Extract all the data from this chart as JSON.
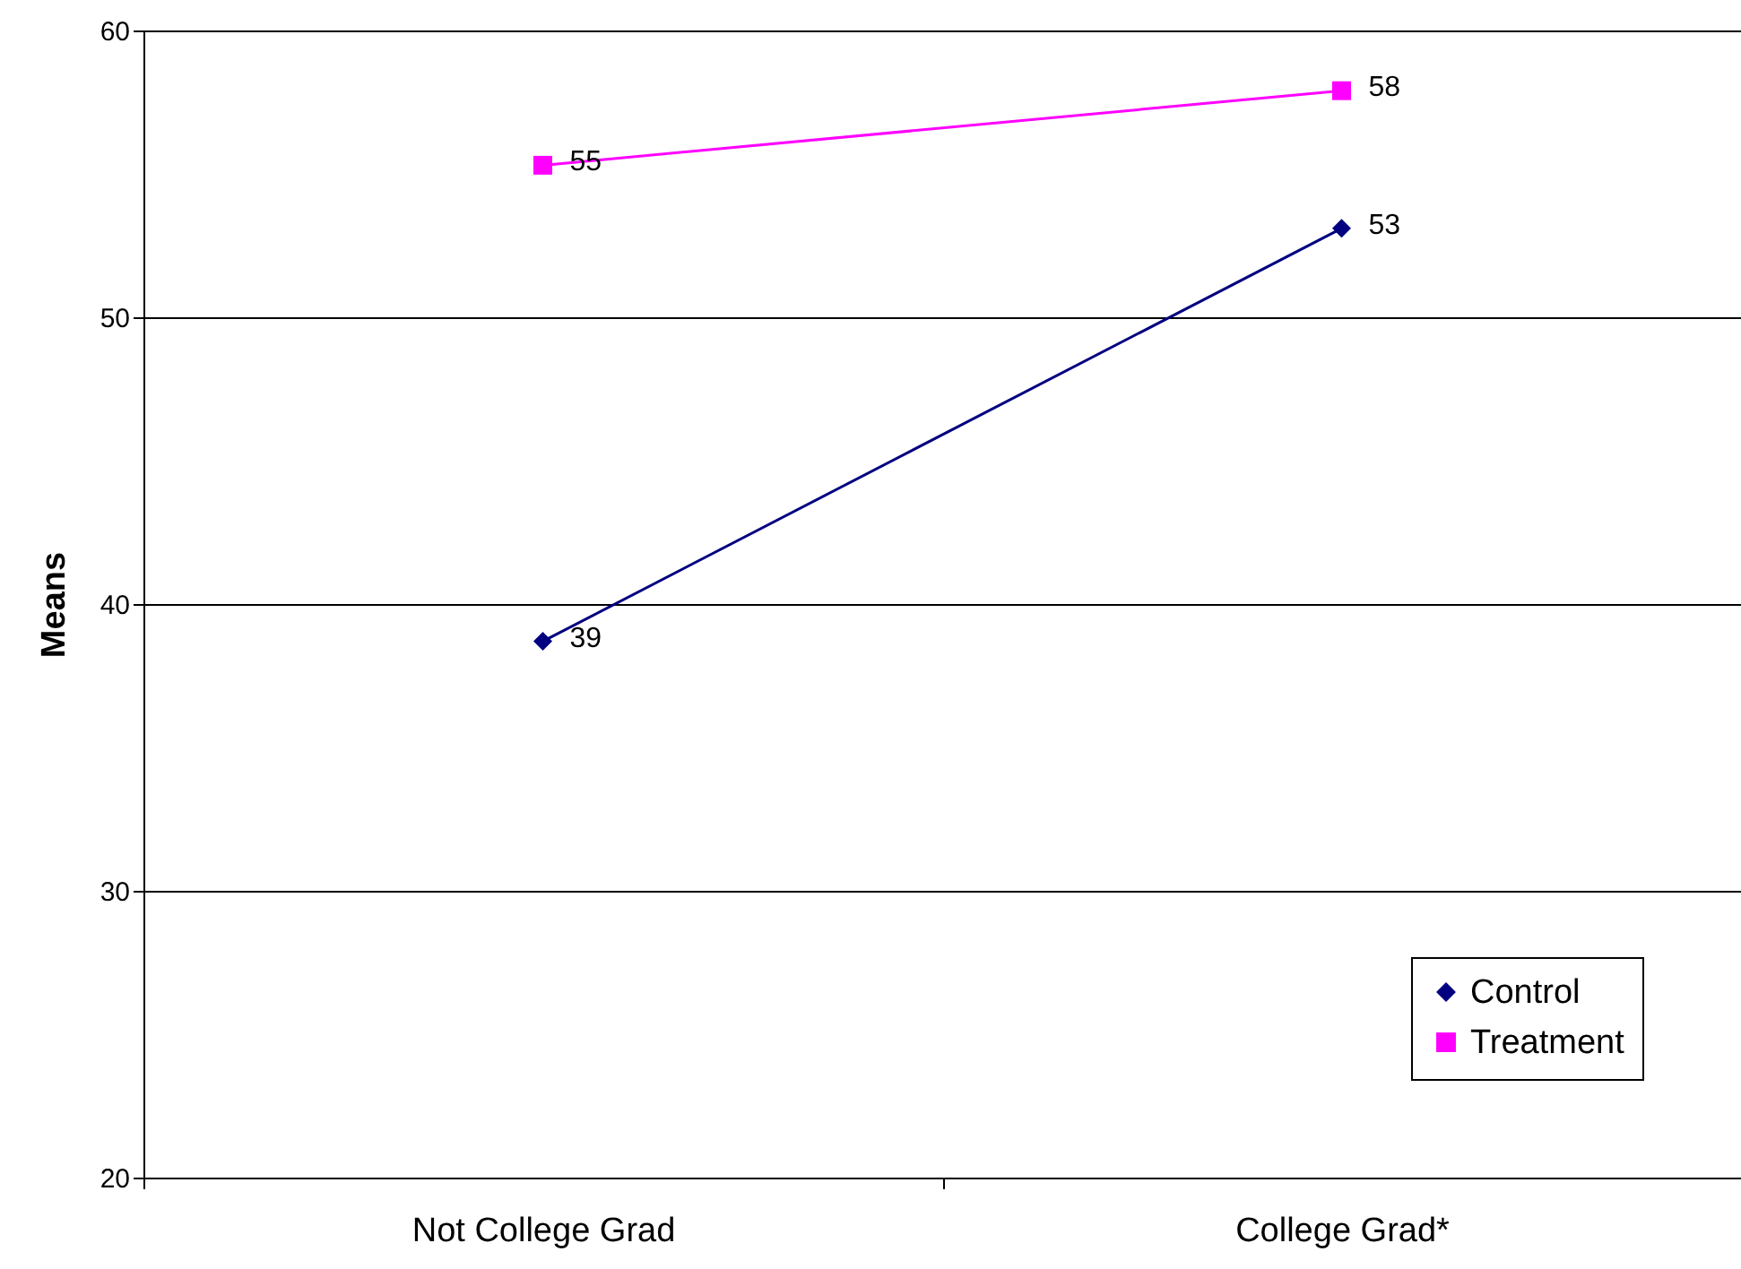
{
  "chart_data": {
    "type": "line",
    "ylabel": "Means",
    "categories": [
      "Not College Grad",
      "College Grad*"
    ],
    "series": [
      {
        "name": "Control",
        "color": "#000080",
        "marker": "diamond",
        "line_style": "solid",
        "values": [
          38.7,
          53.1
        ],
        "value_labels": [
          "39",
          "53"
        ]
      },
      {
        "name": "Treatment",
        "color": "#ff00ff",
        "marker": "square",
        "line_style": "solid",
        "values": [
          55.3,
          57.9
        ],
        "value_labels": [
          "55",
          "58"
        ]
      }
    ],
    "ylim": [
      20,
      60
    ],
    "yticks": [
      20,
      30,
      40,
      50,
      60
    ],
    "grid": "y",
    "legend": "bottom right"
  }
}
